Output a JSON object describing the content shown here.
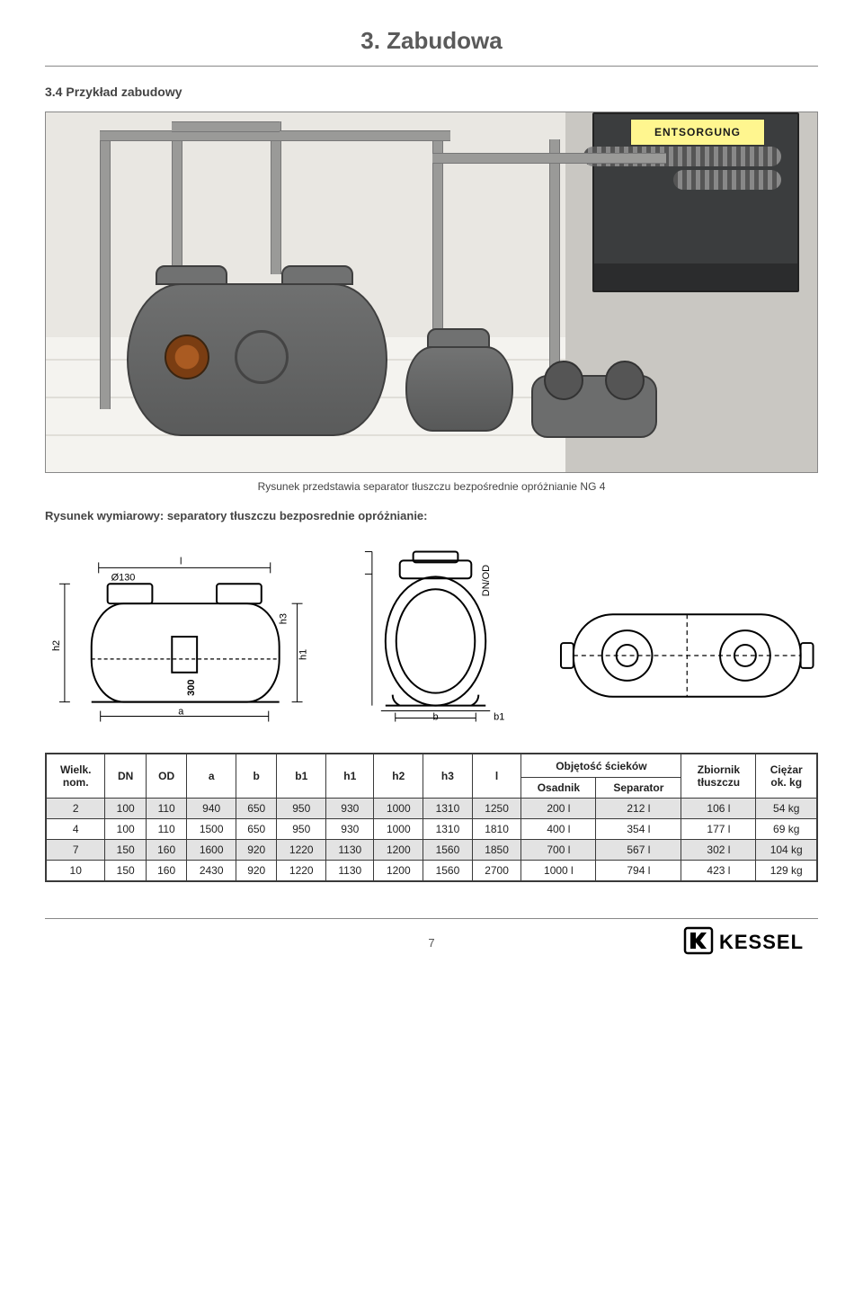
{
  "title": "3. Zabudowa",
  "subtitle": "3.4 Przykład zabudowy",
  "illustration": {
    "sticker": "ENTSORGUNG"
  },
  "caption": "Rysunek przedstawia separator tłuszczu bezpośrednie opróżnianie NG 4",
  "section_label": "Rysunek wymiarowy: separatory tłuszczu bezposrednie opróżnianie:",
  "drawings": {
    "side": {
      "labels": {
        "h1": "h1",
        "h2": "h2",
        "l": "l",
        "a": "a",
        "d130": "Ø130",
        "three_hundred": "300",
        "h3": "h3"
      }
    },
    "front": {
      "labels": {
        "b": "b",
        "b1": "b1",
        "dn_od": "DN/OD"
      }
    }
  },
  "table": {
    "headers": {
      "wielk_nom": "Wielk.\nnom.",
      "dn": "DN",
      "od": "OD",
      "a": "a",
      "b": "b",
      "b1": "b1",
      "h1": "h1",
      "h2": "h2",
      "h3": "h3",
      "l": "l",
      "obj": "Objętość ścieków",
      "osadnik": "Osadnik",
      "separator": "Separator",
      "zbiornik": "Zbiornik\ntłuszczu",
      "ciezar": "Ciężar\nok. kg"
    },
    "rows": [
      [
        "2",
        "100",
        "110",
        "940",
        "650",
        "950",
        "930",
        "1000",
        "1310",
        "1250",
        "200 l",
        "212 l",
        "106 l",
        "54 kg"
      ],
      [
        "4",
        "100",
        "110",
        "1500",
        "650",
        "950",
        "930",
        "1000",
        "1310",
        "1810",
        "400 l",
        "354 l",
        "177 l",
        "69 kg"
      ],
      [
        "7",
        "150",
        "160",
        "1600",
        "920",
        "1220",
        "1130",
        "1200",
        "1560",
        "1850",
        "700 l",
        "567 l",
        "302 l",
        "104 kg"
      ],
      [
        "10",
        "150",
        "160",
        "2430",
        "920",
        "1220",
        "1130",
        "1200",
        "1560",
        "2700",
        "1000 l",
        "794 l",
        "423 l",
        "129 kg"
      ]
    ]
  },
  "footer": {
    "page_num": "7",
    "logo_text": "KESSEL"
  },
  "colors": {
    "title": "#5a5a5a",
    "rule": "#888888",
    "table_border": "#3a3a3a",
    "row_alt": "#e3e3e3"
  }
}
